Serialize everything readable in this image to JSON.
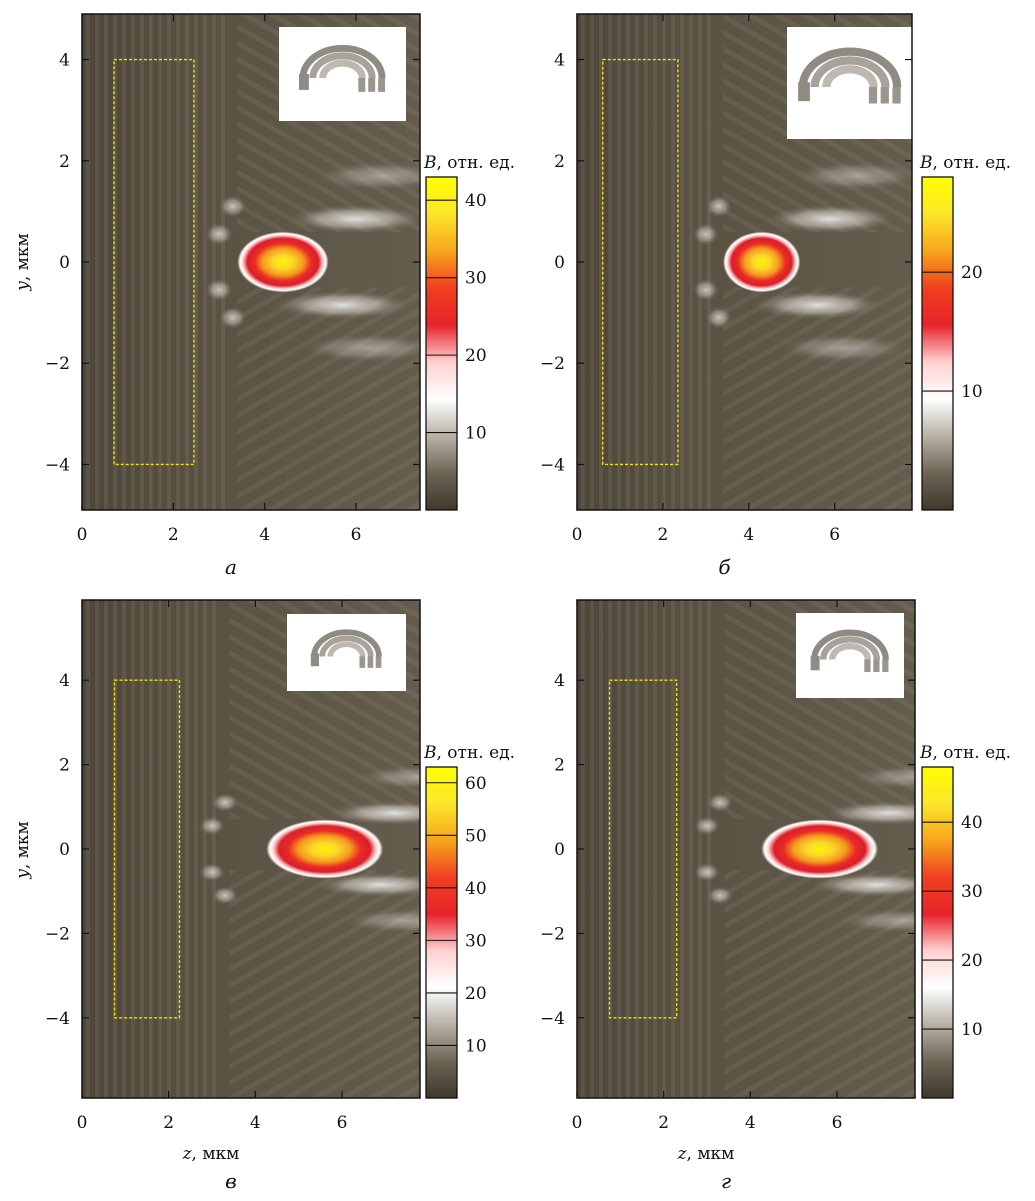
{
  "figure": {
    "colorbar_title_var": "B",
    "colorbar_title_units": ", отн. ед.",
    "ylabel_var": "y",
    "ylabel_units": ", мкм",
    "xlabel_var": "z",
    "xlabel_units": ", мкм",
    "colors": {
      "background_field": "#58503f",
      "colormap": [
        "#3f382c",
        "#6e6556",
        "#b8b2a6",
        "#ffffff",
        "#ffd0d0",
        "#e8222a",
        "#ee4020",
        "#f7a51c",
        "#fbe62a",
        "#ffff00"
      ],
      "lens_outline": "#f2e400"
    }
  },
  "chart_data": [
    {
      "type": "heatmap",
      "panel": "а",
      "caption": "а",
      "xlabel": "",
      "ylabel": "y, мкм",
      "xlim": [
        0,
        7.4
      ],
      "ylim": [
        -4.9,
        4.9
      ],
      "xticks": [
        "0",
        "2",
        "4",
        "6"
      ],
      "yticks": [
        "−4",
        "−2",
        "0",
        "2",
        "4"
      ],
      "ytick_values": [
        -4,
        -2,
        0,
        2,
        4
      ],
      "xtick_values": [
        0,
        2,
        4,
        6
      ],
      "colorbar": {
        "label": "B, отн. ед.",
        "min": 0,
        "max": 43,
        "ticks": [
          10,
          20,
          30,
          40
        ]
      },
      "focus": {
        "z": 4.4,
        "y": 0.0,
        "peak": 43,
        "length_z": 2.0,
        "width_y": 0.6
      },
      "lens_region": {
        "z": [
          0.7,
          2.45
        ],
        "y": [
          -4,
          4
        ]
      },
      "inset": "3D-модель кольцевой линзы"
    },
    {
      "type": "heatmap",
      "panel": "б",
      "caption": "б",
      "xlabel": "",
      "ylabel": "",
      "xlim": [
        0,
        7.8
      ],
      "ylim": [
        -4.9,
        4.9
      ],
      "xticks": [
        "0",
        "2",
        "4",
        "6"
      ],
      "yticks": [
        "−4",
        "−2",
        "0",
        "2",
        "4"
      ],
      "ytick_values": [
        -4,
        -2,
        0,
        2,
        4
      ],
      "xtick_values": [
        0,
        2,
        4,
        6
      ],
      "colorbar": {
        "label": "B, отн. ед.",
        "min": 0,
        "max": 28,
        "ticks": [
          10,
          20
        ]
      },
      "focus": {
        "z": 4.3,
        "y": 0.0,
        "peak": 28,
        "length_z": 1.8,
        "width_y": 0.6
      },
      "lens_region": {
        "z": [
          0.6,
          2.35
        ],
        "y": [
          -4,
          4
        ]
      },
      "inset": "3D-модель кольцевой линзы"
    },
    {
      "type": "heatmap",
      "panel": "в",
      "caption": "в",
      "xlabel": "z, мкм",
      "ylabel": "y, мкм",
      "xlim": [
        0,
        7.8
      ],
      "ylim": [
        -5.9,
        5.9
      ],
      "xticks": [
        "0",
        "2",
        "4",
        "6"
      ],
      "yticks": [
        "−4",
        "−2",
        "0",
        "2",
        "4"
      ],
      "ytick_values": [
        -4,
        -2,
        0,
        2,
        4
      ],
      "xtick_values": [
        0,
        2,
        4,
        6
      ],
      "colorbar": {
        "label": "B, отн. ед.",
        "min": 0,
        "max": 63,
        "ticks": [
          10,
          20,
          30,
          40,
          50,
          60
        ]
      },
      "focus": {
        "z": 5.6,
        "y": 0.0,
        "peak": 63,
        "length_z": 2.7,
        "width_y": 0.7
      },
      "lens_region": {
        "z": [
          0.75,
          2.25
        ],
        "y": [
          -4,
          4
        ]
      },
      "inset": "3D-модель кольцевой линзы"
    },
    {
      "type": "heatmap",
      "panel": "г",
      "caption": "г",
      "xlabel": "z, мкм",
      "ylabel": "",
      "xlim": [
        0,
        7.8
      ],
      "ylim": [
        -5.9,
        5.9
      ],
      "xticks": [
        "0",
        "2",
        "4",
        "6"
      ],
      "yticks": [
        "−4",
        "−2",
        "0",
        "2",
        "4"
      ],
      "ytick_values": [
        -4,
        -2,
        0,
        2,
        4
      ],
      "xtick_values": [
        0,
        2,
        4,
        6
      ],
      "colorbar": {
        "label": "B, отн. ед.",
        "min": 0,
        "max": 48,
        "ticks": [
          10,
          20,
          30,
          40
        ]
      },
      "focus": {
        "z": 5.6,
        "y": 0.0,
        "peak": 48,
        "length_z": 2.7,
        "width_y": 0.7
      },
      "lens_region": {
        "z": [
          0.75,
          2.3
        ],
        "y": [
          -4,
          4
        ]
      },
      "inset": "3D-модель кольцевой линзы"
    }
  ]
}
